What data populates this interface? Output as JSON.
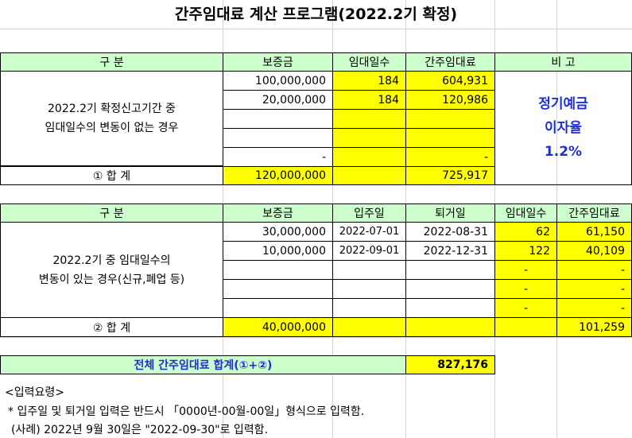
{
  "title": "간주임대료 계산 프로그램(2022.2기 확정)",
  "table1": {
    "headers": [
      "구          분",
      "보증금",
      "임대일수",
      "간주임대료",
      "비    고"
    ],
    "description": "2022.2기 확정신고기간 중\n임대일수의 변동이 없는 경우",
    "rows": [
      {
        "deposit": "100,000,000",
        "days": "184",
        "rent": "604,931"
      },
      {
        "deposit": "20,000,000",
        "days": "184",
        "rent": "120,986"
      },
      {
        "deposit": "",
        "days": "",
        "rent": ""
      },
      {
        "deposit": "",
        "days": "",
        "rent": ""
      },
      {
        "deposit": "-",
        "days": "",
        "rent": "-"
      }
    ],
    "remark_line1": "정기예금",
    "remark_line2": "이자율",
    "remark_line3": "1.2%",
    "total_label": "① 합          계",
    "total_deposit": "120,000,000",
    "total_rent": "725,917"
  },
  "table2": {
    "headers": [
      "구          분",
      "보증금",
      "입주일",
      "퇴거일",
      "임대일수",
      "간주임대료"
    ],
    "description": "2022.2기 중 임대일수의\n변동이 있는 경우(신규,폐업 등)",
    "rows": [
      {
        "deposit": "30,000,000",
        "start": "2022-07-01",
        "end": "2022-08-31",
        "days": "62",
        "rent": "61,150"
      },
      {
        "deposit": "10,000,000",
        "start": "2022-09-01",
        "end": "2022-12-31",
        "days": "122",
        "rent": "40,109"
      },
      {
        "deposit": "",
        "start": "",
        "end": "",
        "days": "-",
        "rent": "-"
      },
      {
        "deposit": "",
        "start": "",
        "end": "",
        "days": "-",
        "rent": "-"
      },
      {
        "deposit": "",
        "start": "",
        "end": "",
        "days": "-",
        "rent": "-"
      }
    ],
    "total_label": "② 합          계",
    "total_deposit": "40,000,000",
    "total_rent": "101,259"
  },
  "grand_total": {
    "label": "전체 간주임대료 합계(①+②)",
    "value": "827,176"
  },
  "notes": {
    "heading": "<입력요령>",
    "line1": "* 입주일 및 퇴거일 입력은 반드시 「0000년-00월-00일」형식으로 입력함.",
    "line2": "(사례) 2022년 9월 30일은 \"2022-09-30\"로 입력함."
  },
  "colors": {
    "header_green": "#ccffcc",
    "input_yellow": "#ffff00",
    "remark_blue": "#1f2fd6"
  }
}
